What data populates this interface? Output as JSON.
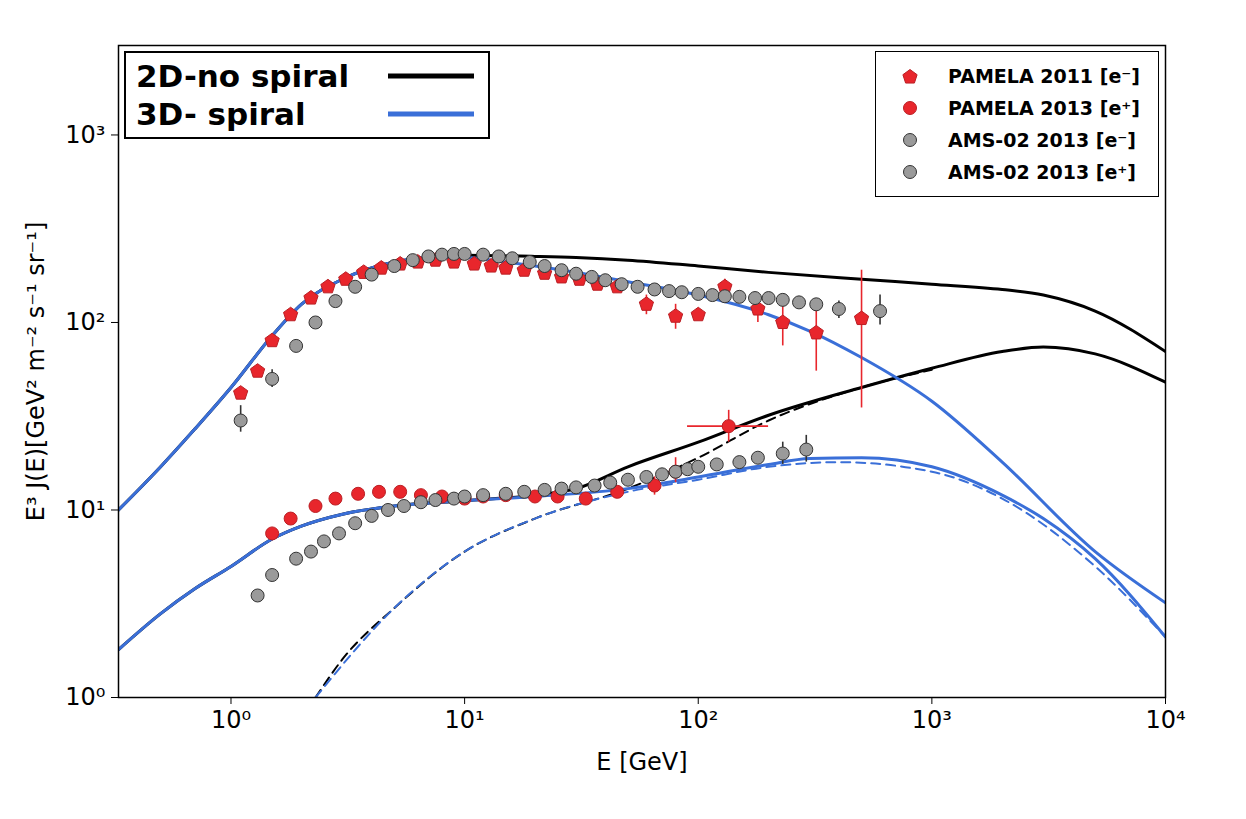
{
  "chart_data": {
    "type": "line",
    "xlabel": "E [GeV]",
    "ylabel": "E³ J(E)[GeV² m⁻² s⁻¹ sr⁻¹]",
    "log": true,
    "grid": false,
    "xlim": [
      0.33,
      10000
    ],
    "ylim": [
      1,
      3000
    ],
    "xticks": [
      {
        "value": 1,
        "label": "10⁰"
      },
      {
        "value": 10,
        "label": "10¹"
      },
      {
        "value": 100,
        "label": "10²"
      },
      {
        "value": 1000,
        "label": "10³"
      },
      {
        "value": 10000,
        "label": "10⁴"
      }
    ],
    "yticks": [
      {
        "value": 1,
        "label": "10⁰"
      },
      {
        "value": 10,
        "label": "10¹"
      },
      {
        "value": 100,
        "label": "10²"
      },
      {
        "value": 1000,
        "label": "10³"
      }
    ],
    "legend": "upper right",
    "models": {
      "legend": "upper left",
      "series": [
        {
          "name": "2D-no spiral",
          "color": "#000000",
          "curves": [
            {
              "line_style": "solid",
              "x": [
                0.33,
                0.5,
                0.7,
                1,
                1.5,
                2,
                3,
                5,
                7,
                10,
                20,
                30,
                50,
                100,
                200,
                500,
                1000,
                2000,
                3000,
                5000,
                10000
              ],
              "values": [
                10,
                17,
                27,
                45,
                85,
                125,
                170,
                210,
                222,
                228,
                225,
                222,
                215,
                200,
                185,
                170,
                160,
                150,
                140,
                115,
                70
              ]
            },
            {
              "line_style": "solid",
              "x": [
                0.33,
                0.5,
                0.7,
                1,
                1.5,
                2,
                3,
                5,
                10,
                20,
                30,
                50,
                100,
                200,
                500,
                1000,
                2000,
                3000,
                5000,
                10000
              ],
              "values": [
                1.8,
                2.8,
                3.8,
                5,
                7,
                8.2,
                9.5,
                10.5,
                11.2,
                12,
                13,
                17,
                23,
                32,
                45,
                57,
                70,
                74,
                68,
                48
              ]
            },
            {
              "line_style": "dashed",
              "x": [
                2.3,
                3,
                5,
                10,
                20,
                50,
                100,
                200,
                500,
                1000
              ],
              "values": [
                1,
                1.6,
                3,
                6,
                9,
                13,
                19,
                30,
                45,
                56
              ]
            }
          ]
        },
        {
          "name": "3D- spiral",
          "color": "#3a6fd8",
          "curves": [
            {
              "line_style": "solid",
              "x": [
                0.33,
                0.5,
                0.7,
                1,
                1.5,
                2,
                3,
                5,
                7,
                10,
                15,
                20,
                30,
                50,
                100,
                200,
                300,
                500,
                1000,
                2000,
                5000,
                10000
              ],
              "values": [
                10,
                17,
                27,
                45,
                85,
                125,
                170,
                210,
                222,
                222,
                210,
                200,
                185,
                165,
                140,
                110,
                90,
                65,
                38,
                18,
                6,
                3.2
              ]
            },
            {
              "line_style": "solid",
              "x": [
                0.33,
                0.5,
                0.7,
                1,
                1.5,
                2,
                3,
                5,
                10,
                20,
                50,
                100,
                200,
                300,
                500,
                1000,
                2000,
                3000,
                5000,
                10000
              ],
              "values": [
                1.8,
                2.8,
                3.8,
                5,
                7,
                8.2,
                9.5,
                10.5,
                11.2,
                11.8,
                13,
                15,
                17.5,
                18.8,
                19,
                17,
                12,
                9,
                5.5,
                2.1
              ]
            },
            {
              "line_style": "dashed",
              "x": [
                2.3,
                5,
                10,
                20,
                50,
                100,
                200,
                400,
                1000,
                2000,
                5000,
                10000
              ],
              "values": [
                1,
                3,
                6,
                9,
                12.5,
                14.5,
                17,
                18,
                16,
                11.5,
                5,
                2.1
              ]
            }
          ]
        }
      ]
    },
    "series": [
      {
        "name": "PAMELA 2011 [e⁻]",
        "type": "scatter",
        "marker": "pentagon",
        "color": "#e8262c",
        "x": [
          1.1,
          1.3,
          1.5,
          1.8,
          2.2,
          2.6,
          3.1,
          3.7,
          4.4,
          5.3,
          6.3,
          7.5,
          9,
          11,
          13,
          15,
          18,
          22,
          26,
          31,
          37,
          45,
          60,
          80,
          100,
          130,
          180,
          230,
          320,
          500
        ],
        "values": [
          42,
          55,
          80,
          110,
          135,
          155,
          170,
          185,
          195,
          205,
          210,
          215,
          210,
          205,
          200,
          195,
          190,
          183,
          175,
          170,
          160,
          155,
          125,
          108,
          110,
          155,
          118,
          100,
          88,
          105
        ],
        "error_low": [
          null,
          null,
          null,
          null,
          null,
          null,
          null,
          null,
          null,
          null,
          null,
          null,
          null,
          null,
          null,
          null,
          null,
          null,
          null,
          null,
          null,
          null,
          110,
          92,
          null,
          130,
          100,
          75,
          55,
          35
        ],
        "error_high": [
          null,
          null,
          null,
          null,
          null,
          null,
          null,
          null,
          null,
          null,
          null,
          null,
          null,
          null,
          null,
          null,
          null,
          null,
          null,
          null,
          null,
          null,
          140,
          125,
          null,
          170,
          135,
          125,
          130,
          190
        ]
      },
      {
        "name": "PAMELA 2013 [e⁺]",
        "type": "scatter",
        "marker": "circle",
        "color": "#e8262c",
        "x": [
          1.5,
          1.8,
          2.3,
          2.8,
          3.5,
          4.3,
          5.3,
          6.5,
          8,
          10,
          12,
          15,
          20,
          25,
          33,
          45,
          65,
          80,
          135
        ],
        "values": [
          7.5,
          9,
          10.5,
          11.5,
          12.2,
          12.5,
          12.5,
          12,
          11.8,
          11.5,
          11.8,
          12,
          11.8,
          11.8,
          11.5,
          12.5,
          13.5,
          16,
          28
        ],
        "error_low": [
          null,
          null,
          null,
          null,
          null,
          null,
          null,
          null,
          null,
          null,
          null,
          null,
          null,
          null,
          null,
          null,
          12,
          14,
          23
        ],
        "error_high": [
          null,
          null,
          null,
          null,
          null,
          null,
          null,
          null,
          null,
          null,
          null,
          null,
          null,
          null,
          null,
          null,
          15,
          19,
          34
        ],
        "x_error_low": [
          null,
          null,
          null,
          null,
          null,
          null,
          null,
          null,
          null,
          null,
          null,
          null,
          null,
          null,
          null,
          null,
          null,
          null,
          90
        ],
        "x_error_high": [
          null,
          null,
          null,
          null,
          null,
          null,
          null,
          null,
          null,
          null,
          null,
          null,
          null,
          null,
          null,
          null,
          null,
          null,
          200
        ]
      },
      {
        "name": "AMS-02 2013 [e⁻]",
        "type": "scatter",
        "marker": "circle",
        "color": "#9a9a9a",
        "x": [
          1.1,
          1.5,
          1.9,
          2.3,
          2.8,
          3.4,
          4,
          5,
          6,
          7,
          8,
          9,
          10,
          12,
          14,
          16,
          19,
          22,
          26,
          30,
          35,
          40,
          47,
          55,
          65,
          75,
          85,
          100,
          115,
          130,
          150,
          175,
          200,
          230,
          270,
          320,
          400,
          600
        ],
        "values": [
          30,
          50,
          75,
          100,
          130,
          155,
          180,
          200,
          215,
          225,
          230,
          232,
          232,
          230,
          225,
          220,
          210,
          200,
          190,
          182,
          175,
          168,
          160,
          155,
          150,
          147,
          145,
          142,
          140,
          138,
          137,
          135,
          135,
          132,
          128,
          125,
          118,
          115
        ],
        "error_low": [
          26,
          45,
          null,
          null,
          null,
          null,
          null,
          null,
          null,
          null,
          null,
          null,
          null,
          null,
          null,
          null,
          null,
          null,
          null,
          null,
          null,
          null,
          null,
          null,
          null,
          null,
          null,
          null,
          null,
          null,
          null,
          null,
          null,
          null,
          null,
          null,
          105,
          97
        ],
        "error_high": [
          36,
          56,
          null,
          null,
          null,
          null,
          null,
          null,
          null,
          null,
          null,
          null,
          null,
          null,
          null,
          null,
          null,
          null,
          null,
          null,
          null,
          null,
          null,
          null,
          null,
          null,
          null,
          null,
          null,
          null,
          null,
          null,
          null,
          null,
          null,
          null,
          130,
          140
        ]
      },
      {
        "name": "AMS-02 2013 [e⁺]",
        "type": "scatter",
        "marker": "circle",
        "color": "#9a9a9a",
        "x": [
          1.3,
          1.5,
          1.9,
          2.2,
          2.5,
          2.9,
          3.4,
          4,
          4.7,
          5.5,
          6.5,
          7.5,
          9,
          10,
          12,
          15,
          18,
          22,
          26,
          30,
          36,
          42,
          50,
          60,
          70,
          80,
          90,
          100,
          120,
          150,
          180,
          230,
          290
        ],
        "values": [
          3.5,
          4.5,
          5.5,
          6,
          6.8,
          7.5,
          8.5,
          9.3,
          10,
          10.5,
          11,
          11.3,
          11.5,
          11.8,
          12,
          12.2,
          12.5,
          12.8,
          13,
          13.2,
          13.5,
          14,
          14.5,
          15,
          15.5,
          16,
          16.5,
          17,
          17.5,
          18,
          19,
          20,
          21
        ],
        "error_low": [
          null,
          null,
          null,
          null,
          null,
          null,
          null,
          null,
          null,
          null,
          null,
          null,
          null,
          null,
          null,
          null,
          null,
          null,
          null,
          null,
          null,
          null,
          null,
          null,
          null,
          null,
          null,
          null,
          null,
          null,
          null,
          17.5,
          18
        ],
        "error_high": [
          null,
          null,
          null,
          null,
          null,
          null,
          null,
          null,
          null,
          null,
          null,
          null,
          null,
          null,
          null,
          null,
          null,
          null,
          null,
          null,
          null,
          null,
          null,
          null,
          null,
          null,
          null,
          null,
          null,
          null,
          null,
          23,
          25
        ]
      }
    ]
  }
}
